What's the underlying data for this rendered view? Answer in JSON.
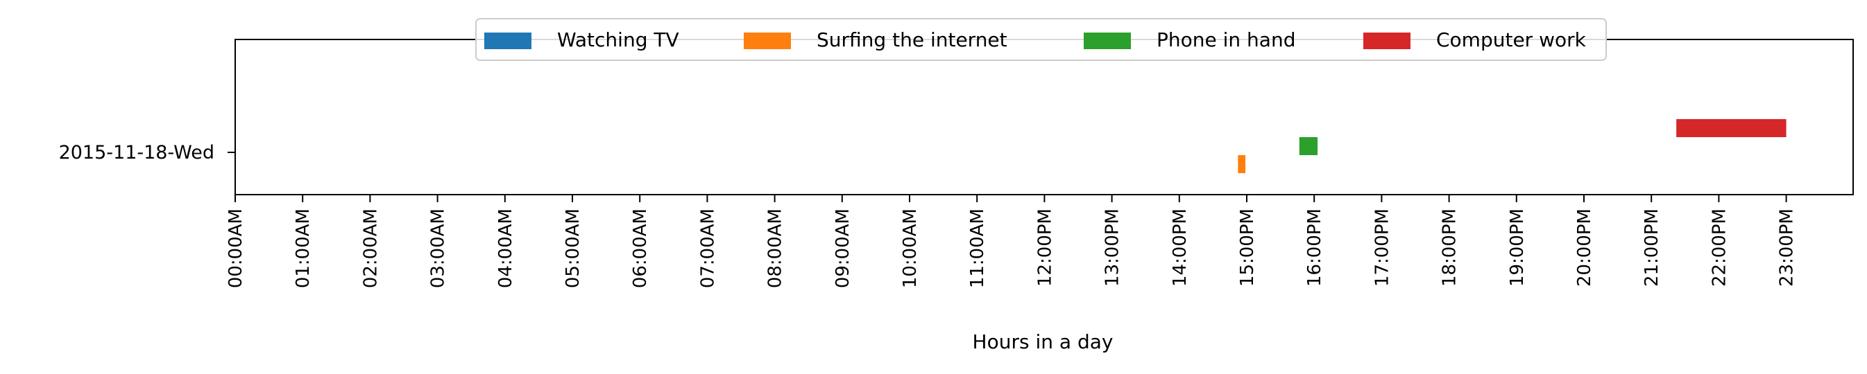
{
  "chart_data": {
    "type": "timeline",
    "title": "",
    "xlabel": "Hours in a day",
    "ylabel": "",
    "xlim": [
      0,
      24
    ],
    "grid": false,
    "legend_position": "top-center",
    "rows": [
      "2015-11-18-Wed"
    ],
    "xticks": [
      "00:00AM",
      "01:00AM",
      "02:00AM",
      "03:00AM",
      "04:00AM",
      "05:00AM",
      "06:00AM",
      "07:00AM",
      "08:00AM",
      "09:00AM",
      "10:00AM",
      "11:00AM",
      "12:00PM",
      "13:00PM",
      "14:00PM",
      "15:00PM",
      "16:00PM",
      "17:00PM",
      "18:00PM",
      "19:00PM",
      "20:00PM",
      "21:00PM",
      "22:00PM",
      "23:00PM"
    ],
    "series": [
      {
        "name": "Watching TV",
        "color": "#1f77b4",
        "segments": []
      },
      {
        "name": "Surfing the internet",
        "color": "#ff7f0e",
        "segments": [
          {
            "row": "2015-11-18-Wed",
            "start": 14.87,
            "end": 14.98
          }
        ]
      },
      {
        "name": "Phone in hand",
        "color": "#2ca02c",
        "segments": [
          {
            "row": "2015-11-18-Wed",
            "start": 15.78,
            "end": 16.05
          }
        ]
      },
      {
        "name": "Computer work",
        "color": "#d62728",
        "segments": [
          {
            "row": "2015-11-18-Wed",
            "start": 21.37,
            "end": 23.0
          }
        ]
      }
    ]
  }
}
